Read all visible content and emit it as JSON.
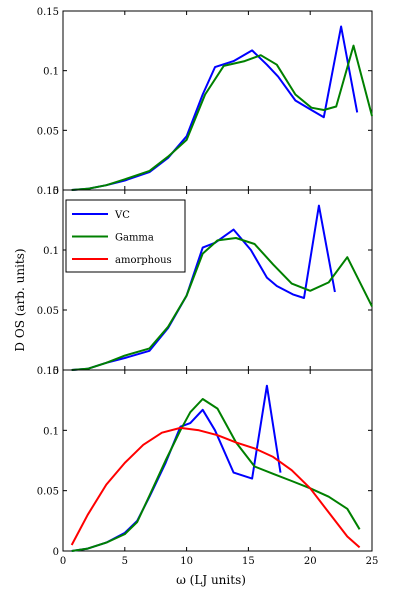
{
  "chart_data": [
    {
      "type": "line",
      "panel": "top",
      "xlim": [
        0,
        25
      ],
      "ylim": [
        0,
        0.15
      ],
      "yticks": [
        0,
        0.05,
        0.1,
        0.15
      ],
      "ytick_labels": [
        "0",
        "0.05",
        "0.1",
        "0.15"
      ],
      "series": [
        {
          "key": "vc",
          "color": "#0000ff",
          "x": [
            0.7,
            2,
            3.5,
            5,
            7,
            8.5,
            10,
            11.3,
            12.3,
            13.8,
            15.3,
            16.5,
            17.4,
            18.8,
            20.1,
            21.1,
            22.5,
            23.8
          ],
          "y": [
            0,
            0.001,
            0.004,
            0.008,
            0.015,
            0.027,
            0.045,
            0.08,
            0.103,
            0.108,
            0.117,
            0.105,
            0.095,
            0.075,
            0.067,
            0.061,
            0.137,
            0.065
          ]
        },
        {
          "key": "gamma",
          "color": "#008000",
          "x": [
            0.7,
            2,
            3.5,
            5,
            7,
            8.5,
            10,
            11.5,
            13,
            14.7,
            16,
            17.3,
            18.8,
            20.1,
            21.1,
            22.1,
            23.5,
            25
          ],
          "y": [
            0,
            0.001,
            0.004,
            0.009,
            0.016,
            0.028,
            0.042,
            0.08,
            0.104,
            0.108,
            0.113,
            0.105,
            0.08,
            0.069,
            0.067,
            0.07,
            0.121,
            0.062
          ]
        }
      ]
    },
    {
      "type": "line",
      "panel": "middle",
      "xlim": [
        0,
        25
      ],
      "ylim": [
        0,
        0.15
      ],
      "yticks": [
        0,
        0.05,
        0.1,
        0.15
      ],
      "ytick_labels": [
        "0",
        "0.05",
        "0.1",
        "0.15"
      ],
      "ylabel": "D OS (arb. units)",
      "legend": {
        "placement": "top-left",
        "entries": [
          {
            "key": "vc",
            "label": "VC",
            "color": "#0000ff"
          },
          {
            "key": "gamma",
            "label": "Gamma",
            "color": "#008000"
          },
          {
            "key": "amorphous",
            "label": "amorphous",
            "color": "#ff0000"
          }
        ]
      },
      "series": [
        {
          "key": "vc",
          "color": "#0000ff",
          "x": [
            0.7,
            2,
            3.5,
            5,
            7,
            8.5,
            10,
            11.3,
            12.3,
            13.8,
            15.2,
            16.5,
            17.3,
            18.6,
            19.5,
            20.7,
            22
          ],
          "y": [
            0,
            0.001,
            0.006,
            0.01,
            0.016,
            0.035,
            0.062,
            0.102,
            0.106,
            0.117,
            0.1,
            0.077,
            0.07,
            0.063,
            0.06,
            0.137,
            0.065
          ]
        },
        {
          "key": "gamma",
          "color": "#008000",
          "x": [
            0.7,
            2,
            3.5,
            5,
            7,
            8.5,
            10,
            11.3,
            12.5,
            14,
            15.5,
            17,
            18.5,
            20,
            21.5,
            23,
            25
          ],
          "y": [
            0,
            0.001,
            0.006,
            0.012,
            0.018,
            0.036,
            0.062,
            0.097,
            0.108,
            0.11,
            0.105,
            0.088,
            0.072,
            0.066,
            0.073,
            0.094,
            0.053
          ]
        }
      ]
    },
    {
      "type": "line",
      "panel": "bottom",
      "xlim": [
        0,
        25
      ],
      "ylim": [
        0,
        0.15
      ],
      "yticks": [
        0,
        0.05,
        0.1,
        0.15
      ],
      "ytick_labels": [
        "0",
        "0.05",
        "0.1",
        "0.15"
      ],
      "xticks": [
        0,
        5,
        10,
        15,
        20,
        25
      ],
      "xtick_labels": [
        "0",
        "5",
        "10",
        "15",
        "20",
        "25"
      ],
      "xlabel": "ω (LJ units)",
      "series": [
        {
          "key": "vc",
          "color": "#0000ff",
          "x": [
            0.7,
            2,
            3.5,
            5,
            6,
            7,
            8.3,
            9.5,
            10.3,
            11.3,
            12.3,
            13.8,
            15.3,
            16.5,
            17.6
          ],
          "y": [
            0,
            0.002,
            0.007,
            0.015,
            0.025,
            0.045,
            0.073,
            0.103,
            0.106,
            0.117,
            0.1,
            0.065,
            0.06,
            0.137,
            0.065
          ]
        },
        {
          "key": "gamma",
          "color": "#008000",
          "x": [
            0.7,
            2,
            3.5,
            5,
            6,
            7,
            8.3,
            9.5,
            10.3,
            11.3,
            12.5,
            14,
            15.5,
            17,
            18.5,
            20,
            21.5,
            23,
            24
          ],
          "y": [
            0,
            0.002,
            0.007,
            0.014,
            0.024,
            0.046,
            0.075,
            0.1,
            0.115,
            0.126,
            0.118,
            0.09,
            0.07,
            0.064,
            0.058,
            0.052,
            0.045,
            0.035,
            0.018
          ]
        },
        {
          "key": "amorphous",
          "color": "#ff0000",
          "x": [
            0.7,
            2,
            3.5,
            5,
            6.5,
            8,
            9.5,
            11,
            12.5,
            14,
            15.5,
            17,
            18.5,
            20,
            21.5,
            23,
            24
          ],
          "y": [
            0.005,
            0.03,
            0.055,
            0.073,
            0.088,
            0.098,
            0.102,
            0.1,
            0.096,
            0.09,
            0.085,
            0.078,
            0.067,
            0.052,
            0.032,
            0.012,
            0.003
          ]
        }
      ]
    }
  ]
}
